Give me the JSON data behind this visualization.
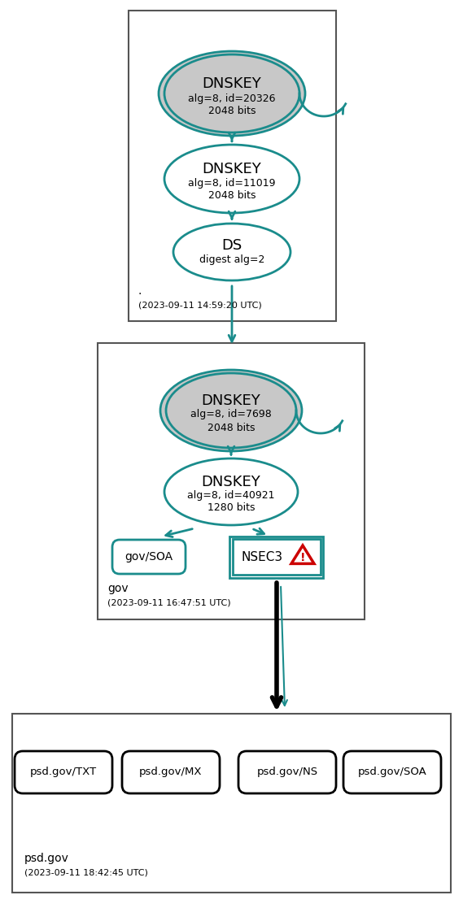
{
  "teal": "#1a8c8c",
  "gray_fill": "#c8c8c8",
  "box1_timestamp": "(2023-09-11 14:59:20 UTC)",
  "box2_label": "gov",
  "box2_timestamp": "(2023-09-11 16:47:51 UTC)",
  "box3_label": "psd.gov",
  "box3_timestamp": "(2023-09-11 18:42:45 UTC)",
  "dnskey1_line1": "DNSKEY",
  "dnskey1_line2": "alg=8, id=20326",
  "dnskey1_line3": "2048 bits",
  "dnskey2_line1": "DNSKEY",
  "dnskey2_line2": "alg=8, id=11019",
  "dnskey2_line3": "2048 bits",
  "ds_line1": "DS",
  "ds_line2": "digest alg=2",
  "dnskey3_line1": "DNSKEY",
  "dnskey3_line2": "alg=8, id=7698",
  "dnskey3_line3": "2048 bits",
  "dnskey4_line1": "DNSKEY",
  "dnskey4_line2": "alg=8, id=40921",
  "dnskey4_line3": "1280 bits",
  "gov_soa": "gov/SOA",
  "nsec3": "NSEC3",
  "psd_records": [
    "psd.gov/TXT",
    "psd.gov/MX",
    "psd.gov/NS",
    "psd.gov/SOA"
  ],
  "box1_dot": ".",
  "figw": 5.69,
  "figh": 11.17,
  "dpi": 100
}
